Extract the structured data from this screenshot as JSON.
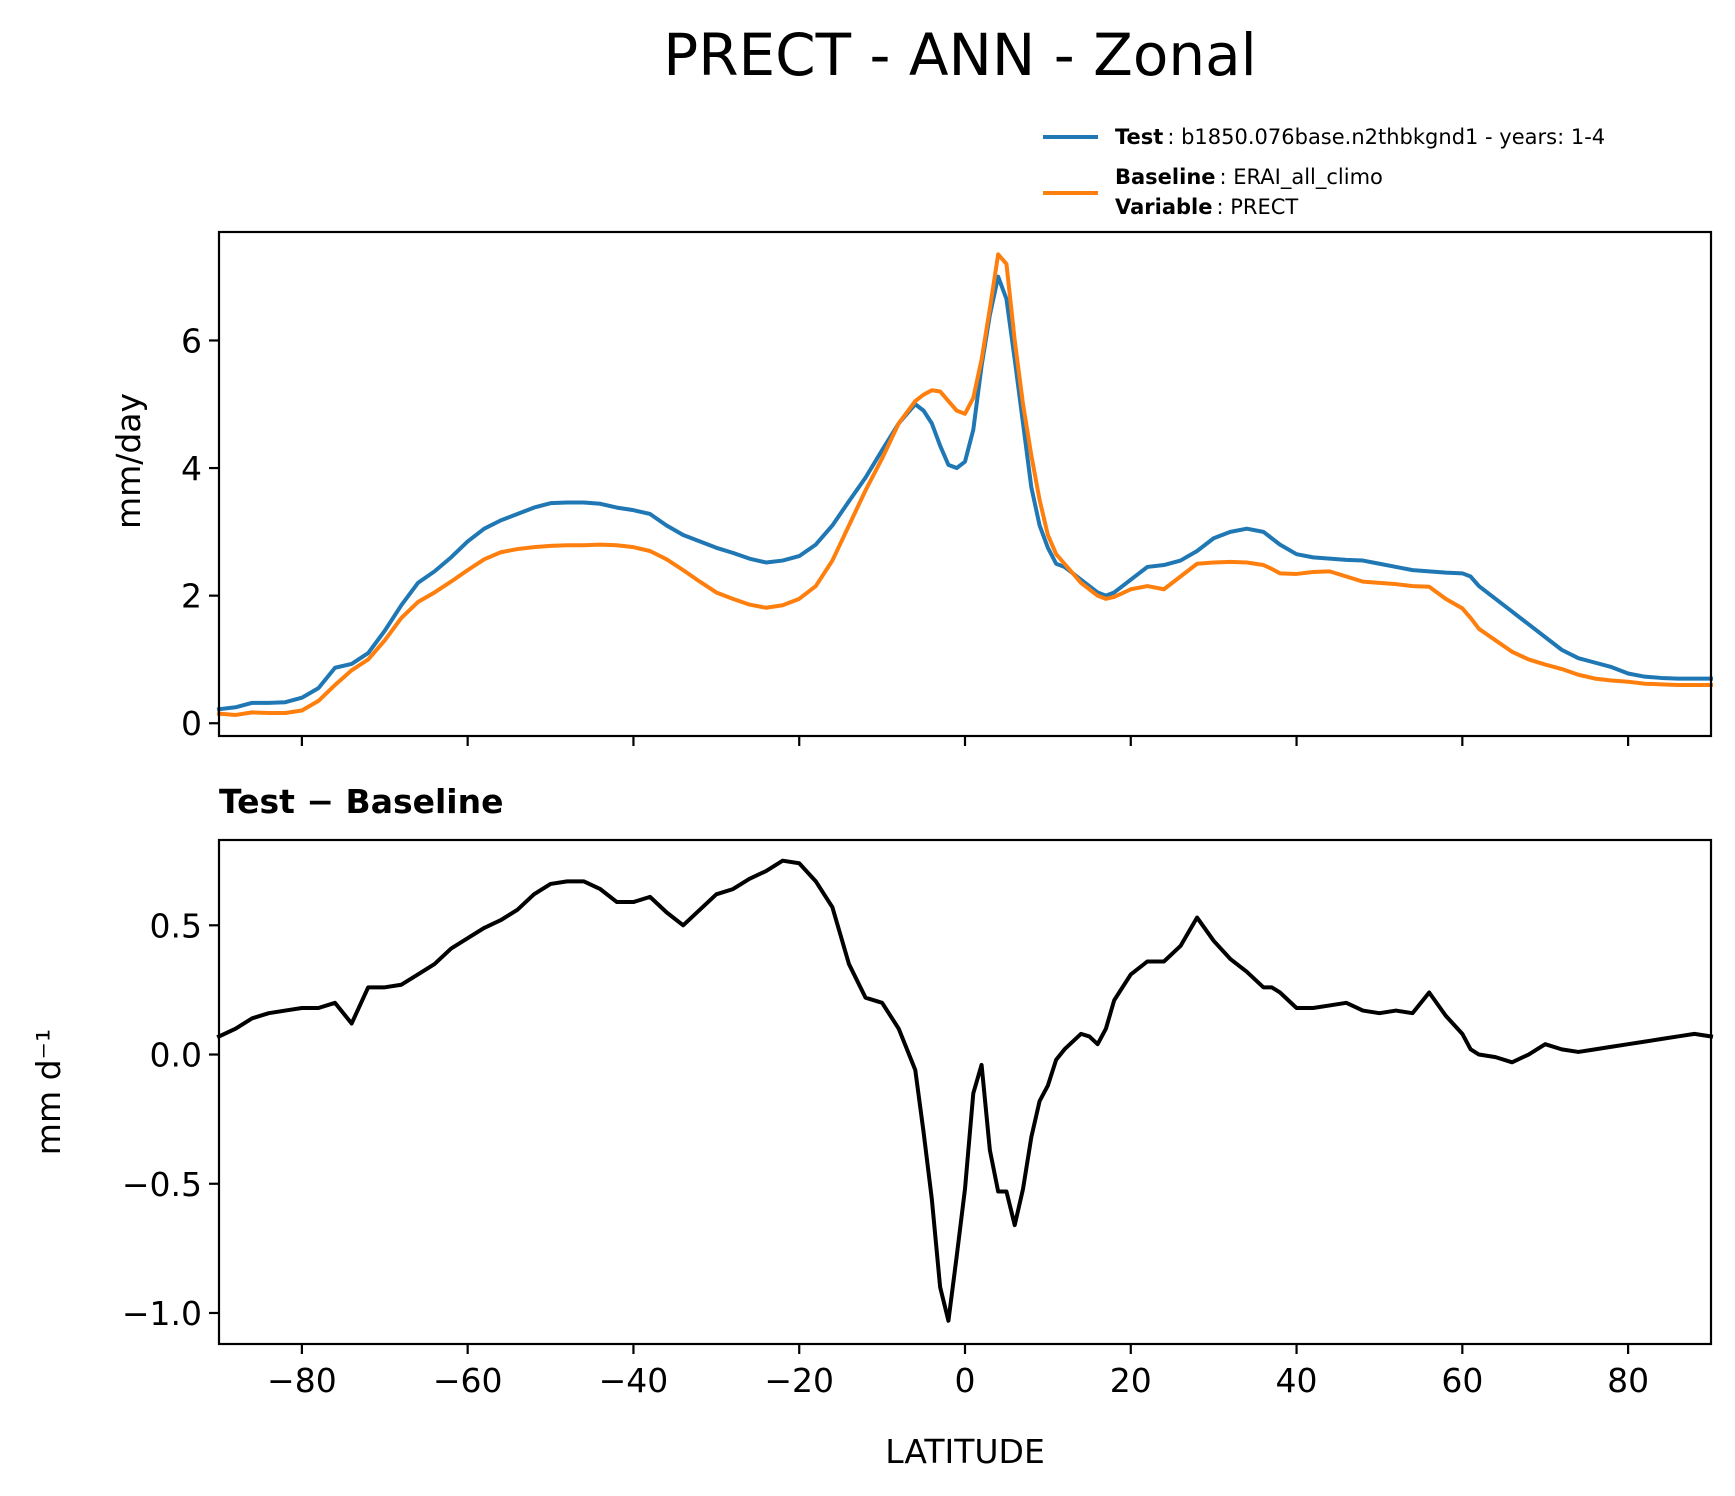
{
  "figure": {
    "title": "PRECT - ANN - Zonal"
  },
  "legend": {
    "test_key": "Test",
    "test_value": ": b1850.076base.n2thbkgnd1 - years: 1-4",
    "baseline_key": "Baseline",
    "baseline_value": ": ERAI_all_climo",
    "variable_key": "Variable",
    "variable_value": ": PRECT"
  },
  "chart_data": [
    {
      "type": "line",
      "ylabel": "mm/day",
      "xlim": [
        -90,
        90
      ],
      "ylim": [
        -0.2,
        7.7
      ],
      "yticks": [
        0,
        2,
        4,
        6
      ],
      "xticks": [
        -80,
        -60,
        -40,
        -20,
        0,
        20,
        40,
        60,
        80
      ],
      "legend_position": "above-right",
      "grid": false,
      "series": [
        {
          "name": "Test",
          "color": "#1f77b4",
          "x": [
            -90,
            -88,
            -86,
            -84,
            -82,
            -80,
            -78,
            -76,
            -74,
            -72,
            -70,
            -68,
            -66,
            -64,
            -62,
            -60,
            -58,
            -56,
            -54,
            -52,
            -50,
            -48,
            -46,
            -44,
            -42,
            -40,
            -38,
            -36,
            -34,
            -32,
            -30,
            -28,
            -26,
            -24,
            -22,
            -20,
            -18,
            -16,
            -14,
            -12,
            -10,
            -8,
            -6,
            -5,
            -4,
            -3,
            -2,
            -1,
            0,
            1,
            2,
            3,
            4,
            5,
            6,
            7,
            8,
            9,
            10,
            11,
            12,
            13,
            14,
            15,
            16,
            17,
            18,
            20,
            22,
            24,
            26,
            28,
            30,
            32,
            34,
            36,
            37,
            38,
            40,
            42,
            44,
            46,
            48,
            50,
            52,
            54,
            56,
            58,
            60,
            61,
            62,
            64,
            66,
            68,
            70,
            72,
            74,
            76,
            78,
            80,
            82,
            84,
            86,
            88,
            90
          ],
          "y": [
            0.22,
            0.25,
            0.32,
            0.32,
            0.33,
            0.4,
            0.55,
            0.87,
            0.93,
            1.1,
            1.45,
            1.85,
            2.2,
            2.38,
            2.6,
            2.85,
            3.05,
            3.18,
            3.28,
            3.38,
            3.45,
            3.46,
            3.46,
            3.44,
            3.38,
            3.34,
            3.28,
            3.1,
            2.95,
            2.85,
            2.75,
            2.67,
            2.58,
            2.52,
            2.55,
            2.62,
            2.8,
            3.1,
            3.48,
            3.85,
            4.28,
            4.7,
            5.0,
            4.9,
            4.7,
            4.35,
            4.05,
            4.0,
            4.1,
            4.6,
            5.6,
            6.4,
            7.0,
            6.65,
            5.7,
            4.7,
            3.7,
            3.1,
            2.75,
            2.5,
            2.45,
            2.35,
            2.25,
            2.15,
            2.05,
            2.0,
            2.05,
            2.25,
            2.45,
            2.48,
            2.55,
            2.7,
            2.9,
            3.0,
            3.05,
            3.0,
            2.9,
            2.8,
            2.65,
            2.6,
            2.58,
            2.56,
            2.55,
            2.5,
            2.45,
            2.4,
            2.38,
            2.36,
            2.35,
            2.3,
            2.15,
            1.95,
            1.75,
            1.55,
            1.35,
            1.15,
            1.02,
            0.95,
            0.88,
            0.78,
            0.73,
            0.71,
            0.7,
            0.7,
            0.7
          ]
        },
        {
          "name": "Baseline",
          "color": "#ff7f0e",
          "x": [
            -90,
            -88,
            -86,
            -84,
            -82,
            -80,
            -78,
            -76,
            -74,
            -72,
            -70,
            -68,
            -66,
            -64,
            -62,
            -60,
            -58,
            -56,
            -54,
            -52,
            -50,
            -48,
            -46,
            -44,
            -42,
            -40,
            -38,
            -36,
            -34,
            -32,
            -30,
            -28,
            -26,
            -24,
            -22,
            -20,
            -18,
            -16,
            -14,
            -12,
            -10,
            -8,
            -6,
            -5,
            -4,
            -3,
            -2,
            -1,
            0,
            1,
            2,
            3,
            4,
            5,
            6,
            7,
            8,
            9,
            10,
            11,
            12,
            13,
            14,
            15,
            16,
            17,
            18,
            20,
            22,
            24,
            26,
            28,
            30,
            32,
            34,
            36,
            37,
            38,
            40,
            42,
            44,
            46,
            48,
            50,
            52,
            54,
            56,
            58,
            60,
            61,
            62,
            64,
            66,
            68,
            70,
            72,
            74,
            76,
            78,
            80,
            82,
            84,
            86,
            88,
            90
          ],
          "y": [
            0.15,
            0.13,
            0.17,
            0.16,
            0.16,
            0.2,
            0.35,
            0.6,
            0.83,
            1.0,
            1.3,
            1.65,
            1.9,
            2.05,
            2.22,
            2.4,
            2.57,
            2.68,
            2.73,
            2.76,
            2.78,
            2.79,
            2.79,
            2.8,
            2.79,
            2.76,
            2.7,
            2.57,
            2.4,
            2.22,
            2.05,
            1.95,
            1.86,
            1.81,
            1.85,
            1.95,
            2.15,
            2.55,
            3.1,
            3.65,
            4.15,
            4.7,
            5.05,
            5.15,
            5.22,
            5.2,
            5.05,
            4.9,
            4.85,
            5.1,
            5.7,
            6.5,
            7.35,
            7.2,
            6.0,
            5.0,
            4.2,
            3.5,
            2.95,
            2.65,
            2.5,
            2.35,
            2.2,
            2.1,
            2.0,
            1.95,
            1.98,
            2.1,
            2.15,
            2.1,
            2.3,
            2.5,
            2.52,
            2.53,
            2.52,
            2.48,
            2.42,
            2.35,
            2.34,
            2.37,
            2.38,
            2.3,
            2.22,
            2.2,
            2.18,
            2.15,
            2.14,
            1.95,
            1.8,
            1.65,
            1.48,
            1.3,
            1.12,
            1.0,
            0.92,
            0.85,
            0.76,
            0.7,
            0.67,
            0.65,
            0.62,
            0.61,
            0.6,
            0.6,
            0.6
          ]
        }
      ]
    },
    {
      "type": "line",
      "title": "Test − Baseline",
      "ylabel": "mm d⁻¹",
      "xlabel": "LATITUDE",
      "xlim": [
        -90,
        90
      ],
      "ylim": [
        -1.12,
        0.83
      ],
      "yticks": [
        -1.0,
        -0.5,
        0.0,
        0.5
      ],
      "ytick_labels": [
        "−1.0",
        "−0.5",
        "0.0",
        "0.5"
      ],
      "xticks": [
        -80,
        -60,
        -40,
        -20,
        0,
        20,
        40,
        60,
        80
      ],
      "xtick_labels": [
        "−80",
        "−60",
        "−40",
        "−20",
        "0",
        "20",
        "40",
        "60",
        "80"
      ],
      "grid": false,
      "series": [
        {
          "color": "#000000",
          "x": [
            -90,
            -88,
            -86,
            -84,
            -82,
            -80,
            -78,
            -76,
            -74,
            -72,
            -70,
            -68,
            -66,
            -64,
            -62,
            -60,
            -58,
            -56,
            -54,
            -52,
            -50,
            -48,
            -46,
            -44,
            -42,
            -40,
            -38,
            -36,
            -34,
            -32,
            -30,
            -28,
            -26,
            -24,
            -22,
            -20,
            -18,
            -16,
            -14,
            -12,
            -10,
            -8,
            -6,
            -5,
            -4,
            -3,
            -2,
            -1,
            0,
            1,
            2,
            3,
            4,
            5,
            6,
            7,
            8,
            9,
            10,
            11,
            12,
            13,
            14,
            15,
            16,
            17,
            18,
            20,
            22,
            24,
            26,
            28,
            30,
            32,
            34,
            36,
            37,
            38,
            40,
            42,
            44,
            46,
            48,
            50,
            52,
            54,
            56,
            58,
            60,
            61,
            62,
            64,
            66,
            68,
            70,
            72,
            74,
            76,
            78,
            80,
            82,
            84,
            86,
            88,
            90
          ],
          "y": [
            0.07,
            0.1,
            0.14,
            0.16,
            0.17,
            0.18,
            0.18,
            0.2,
            0.12,
            0.26,
            0.26,
            0.27,
            0.31,
            0.35,
            0.41,
            0.45,
            0.49,
            0.52,
            0.56,
            0.62,
            0.66,
            0.67,
            0.67,
            0.64,
            0.59,
            0.59,
            0.61,
            0.55,
            0.5,
            0.56,
            0.62,
            0.64,
            0.68,
            0.71,
            0.75,
            0.74,
            0.67,
            0.57,
            0.35,
            0.22,
            0.2,
            0.1,
            -0.06,
            -0.3,
            -0.56,
            -0.9,
            -1.03,
            -0.78,
            -0.52,
            -0.15,
            -0.04,
            -0.37,
            -0.53,
            -0.53,
            -0.66,
            -0.52,
            -0.32,
            -0.18,
            -0.12,
            -0.02,
            0.02,
            0.05,
            0.08,
            0.07,
            0.04,
            0.1,
            0.21,
            0.31,
            0.36,
            0.36,
            0.42,
            0.53,
            0.44,
            0.37,
            0.32,
            0.26,
            0.26,
            0.24,
            0.18,
            0.18,
            0.19,
            0.2,
            0.17,
            0.16,
            0.17,
            0.16,
            0.24,
            0.15,
            0.08,
            0.02,
            0.0,
            -0.01,
            -0.03,
            0.0,
            0.04,
            0.02,
            0.01,
            0.02,
            0.03,
            0.04,
            0.05,
            0.06,
            0.07,
            0.08,
            0.07
          ]
        }
      ]
    }
  ]
}
